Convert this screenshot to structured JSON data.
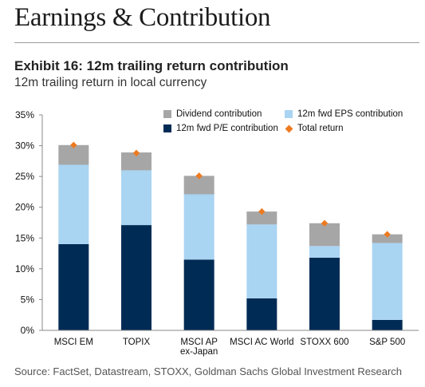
{
  "header": {
    "section_title": "Earnings & Contribution",
    "exhibit_title": "Exhibit 16: 12m trailing return contribution",
    "exhibit_subtitle": "12m trailing return in local currency"
  },
  "source": "Source: FactSet, Datastream, STOXX, Goldman Sachs Global Investment Research",
  "colors": {
    "pe": "#002b55",
    "eps": "#a9d4f2",
    "dividend": "#a6a6a6",
    "total": "#ee7a1f"
  },
  "chart_data": {
    "type": "bar",
    "stacked": true,
    "title": "Exhibit 16: 12m trailing return contribution",
    "subtitle": "12m trailing return in local currency",
    "categories": [
      [
        "MSCI EM"
      ],
      [
        "TOPIX"
      ],
      [
        "MSCI AP",
        "ex-Japan"
      ],
      [
        "MSCI AC World"
      ],
      [
        "STOXX 600"
      ],
      [
        "S&P 500"
      ]
    ],
    "series": [
      {
        "name": "12m fwd P/E contribution",
        "values": [
          14.0,
          17.1,
          11.5,
          5.2,
          11.8,
          1.7
        ]
      },
      {
        "name": "12m fwd EPS contribution",
        "values": [
          12.9,
          8.9,
          10.6,
          12.0,
          1.9,
          12.5
        ]
      },
      {
        "name": "Dividend contribution",
        "values": [
          3.2,
          2.9,
          3.0,
          2.1,
          3.7,
          1.4
        ]
      }
    ],
    "total_return": {
      "name": "Total return",
      "values": [
        30.1,
        28.8,
        25.1,
        19.3,
        17.4,
        15.6
      ]
    },
    "ylim": [
      0,
      35
    ],
    "yticks": [
      "0%",
      "5%",
      "10%",
      "15%",
      "20%",
      "25%",
      "30%",
      "35%"
    ],
    "grid": false,
    "legend_position": "top-right"
  }
}
